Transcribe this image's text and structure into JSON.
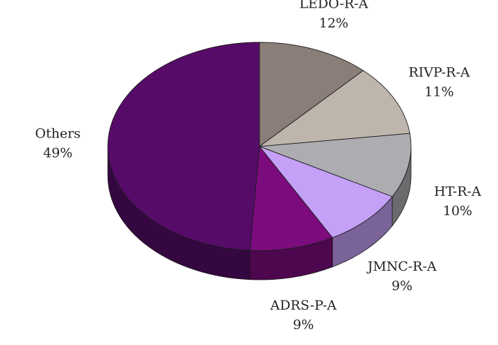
{
  "chart_data": {
    "type": "pie",
    "style": "3d",
    "title": "",
    "slices": [
      {
        "label": "LEDO-R-A",
        "value_label": "12%",
        "value": 12,
        "color": "#8B7D77"
      },
      {
        "label": "RIVP-R-A",
        "value_label": "11%",
        "value": 11,
        "color": "#BEB5AD"
      },
      {
        "label": "HT-R-A",
        "value_label": "10%",
        "value": 10,
        "color": "#ACACB1"
      },
      {
        "label": "JMNC-R-A",
        "value_label": "9%",
        "value": 9,
        "color": "#C5A0F7"
      },
      {
        "label": "ADRS-P-A",
        "value_label": "9%",
        "value": 9,
        "color": "#7C0C7E"
      },
      {
        "label": "Others",
        "value_label": "49%",
        "value": 49,
        "color": "#560B69"
      }
    ],
    "legend": "none"
  }
}
